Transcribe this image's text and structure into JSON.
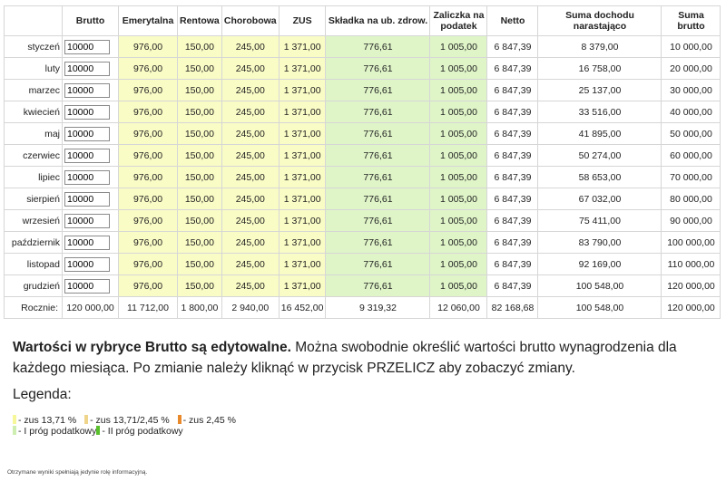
{
  "table": {
    "headers": [
      "",
      "Brutto",
      "Emerytalna",
      "Rentowa",
      "Chorobowa",
      "ZUS",
      "Składka na ub. zdrow.",
      "Zaliczka na podatek",
      "Netto",
      "Suma dochodu narastająco",
      "Suma brutto"
    ],
    "rows": [
      {
        "month": "styczeń",
        "brutto": "10000",
        "emerytalna": "976,00",
        "rentowa": "150,00",
        "chorobowa": "245,00",
        "zus": "1 371,00",
        "zdrow": "776,61",
        "zaliczka": "1 005,00",
        "netto": "6 847,39",
        "suma_dochodu": "8 379,00",
        "suma_brutto": "10 000,00"
      },
      {
        "month": "luty",
        "brutto": "10000",
        "emerytalna": "976,00",
        "rentowa": "150,00",
        "chorobowa": "245,00",
        "zus": "1 371,00",
        "zdrow": "776,61",
        "zaliczka": "1 005,00",
        "netto": "6 847,39",
        "suma_dochodu": "16 758,00",
        "suma_brutto": "20 000,00"
      },
      {
        "month": "marzec",
        "brutto": "10000",
        "emerytalna": "976,00",
        "rentowa": "150,00",
        "chorobowa": "245,00",
        "zus": "1 371,00",
        "zdrow": "776,61",
        "zaliczka": "1 005,00",
        "netto": "6 847,39",
        "suma_dochodu": "25 137,00",
        "suma_brutto": "30 000,00"
      },
      {
        "month": "kwiecień",
        "brutto": "10000",
        "emerytalna": "976,00",
        "rentowa": "150,00",
        "chorobowa": "245,00",
        "zus": "1 371,00",
        "zdrow": "776,61",
        "zaliczka": "1 005,00",
        "netto": "6 847,39",
        "suma_dochodu": "33 516,00",
        "suma_brutto": "40 000,00"
      },
      {
        "month": "maj",
        "brutto": "10000",
        "emerytalna": "976,00",
        "rentowa": "150,00",
        "chorobowa": "245,00",
        "zus": "1 371,00",
        "zdrow": "776,61",
        "zaliczka": "1 005,00",
        "netto": "6 847,39",
        "suma_dochodu": "41 895,00",
        "suma_brutto": "50 000,00"
      },
      {
        "month": "czerwiec",
        "brutto": "10000",
        "emerytalna": "976,00",
        "rentowa": "150,00",
        "chorobowa": "245,00",
        "zus": "1 371,00",
        "zdrow": "776,61",
        "zaliczka": "1 005,00",
        "netto": "6 847,39",
        "suma_dochodu": "50 274,00",
        "suma_brutto": "60 000,00"
      },
      {
        "month": "lipiec",
        "brutto": "10000",
        "emerytalna": "976,00",
        "rentowa": "150,00",
        "chorobowa": "245,00",
        "zus": "1 371,00",
        "zdrow": "776,61",
        "zaliczka": "1 005,00",
        "netto": "6 847,39",
        "suma_dochodu": "58 653,00",
        "suma_brutto": "70 000,00"
      },
      {
        "month": "sierpień",
        "brutto": "10000",
        "emerytalna": "976,00",
        "rentowa": "150,00",
        "chorobowa": "245,00",
        "zus": "1 371,00",
        "zdrow": "776,61",
        "zaliczka": "1 005,00",
        "netto": "6 847,39",
        "suma_dochodu": "67 032,00",
        "suma_brutto": "80 000,00"
      },
      {
        "month": "wrzesień",
        "brutto": "10000",
        "emerytalna": "976,00",
        "rentowa": "150,00",
        "chorobowa": "245,00",
        "zus": "1 371,00",
        "zdrow": "776,61",
        "zaliczka": "1 005,00",
        "netto": "6 847,39",
        "suma_dochodu": "75 411,00",
        "suma_brutto": "90 000,00"
      },
      {
        "month": "październik",
        "brutto": "10000",
        "emerytalna": "976,00",
        "rentowa": "150,00",
        "chorobowa": "245,00",
        "zus": "1 371,00",
        "zdrow": "776,61",
        "zaliczka": "1 005,00",
        "netto": "6 847,39",
        "suma_dochodu": "83 790,00",
        "suma_brutto": "100 000,00"
      },
      {
        "month": "listopad",
        "brutto": "10000",
        "emerytalna": "976,00",
        "rentowa": "150,00",
        "chorobowa": "245,00",
        "zus": "1 371,00",
        "zdrow": "776,61",
        "zaliczka": "1 005,00",
        "netto": "6 847,39",
        "suma_dochodu": "92 169,00",
        "suma_brutto": "110 000,00"
      },
      {
        "month": "grudzień",
        "brutto": "10000",
        "emerytalna": "976,00",
        "rentowa": "150,00",
        "chorobowa": "245,00",
        "zus": "1 371,00",
        "zdrow": "776,61",
        "zaliczka": "1 005,00",
        "netto": "6 847,39",
        "suma_dochodu": "100 548,00",
        "suma_brutto": "120 000,00"
      }
    ],
    "totals": {
      "label": "Rocznie:",
      "brutto": "120 000,00",
      "emerytalna": "11 712,00",
      "rentowa": "1 800,00",
      "chorobowa": "2 940,00",
      "zus": "16 452,00",
      "zdrow": "9 319,32",
      "zaliczka": "12 060,00",
      "netto": "82 168,68",
      "suma_dochodu": "100 548,00",
      "suma_brutto": "120 000,00"
    }
  },
  "info": {
    "bold": "Wartości w rybryce Brutto są edytowalne.",
    "text": " Można swobodnie określić wartości brutto wynagrodzenia dla każdego miesiąca. Po zmianie należy kliknąć w przycisk PRZELICZ aby zobaczyć zmiany."
  },
  "legend": {
    "title": "Legenda:",
    "items": [
      {
        "label": "- zus 13,71 %",
        "color": "#f5f79a"
      },
      {
        "label": "- zus 13,71/2,45 %",
        "color": "#efd48c"
      },
      {
        "label": "- zus 2,45 %",
        "color": "#e88a2c"
      },
      {
        "label": "- I próg podatkowy",
        "color": "#cdeeb0"
      },
      {
        "label": "- II próg podatkowy",
        "color": "#59c02c"
      }
    ]
  },
  "footnote": "Otrzymane wyniki spełniają jedynie rolę informacyjną."
}
